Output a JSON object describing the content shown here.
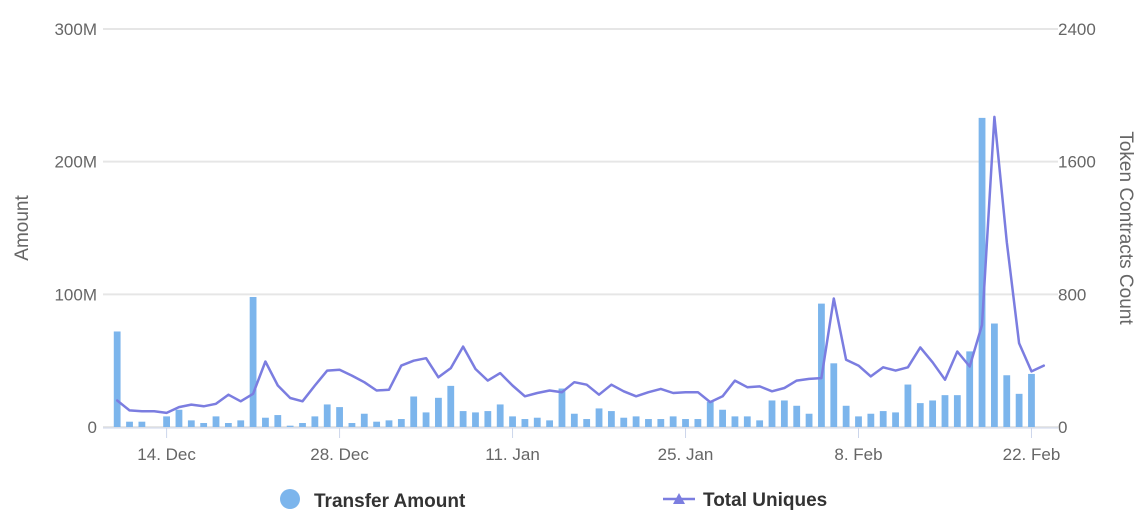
{
  "chart_data": {
    "type": "bar+line",
    "x_type": "datetime",
    "x_range": [
      "2023-12-10",
      "2024-02-23"
    ],
    "x_ticks": [
      "14. Dec",
      "28. Dec",
      "11. Jan",
      "25. Jan",
      "8. Feb",
      "22. Feb"
    ],
    "x_tick_dates": [
      "2023-12-14",
      "2023-12-28",
      "2024-01-11",
      "2024-01-25",
      "2024-02-08",
      "2024-02-22"
    ],
    "y_left": {
      "title": "Amount",
      "range": [
        0,
        300000000
      ],
      "ticks": [
        0,
        100000000,
        200000000,
        300000000
      ],
      "tick_labels": [
        "0",
        "100M",
        "200M",
        "300M"
      ]
    },
    "y_right": {
      "title": "Token Contracts Count",
      "range": [
        0,
        2400
      ],
      "ticks": [
        0,
        800,
        1600,
        2400
      ],
      "tick_labels": [
        "0",
        "800",
        "1600",
        "2400"
      ]
    },
    "grid": true,
    "legend_position": "bottom",
    "colors": {
      "bars": "#7cb5ec",
      "line": "#7b7de0",
      "grid": "#e6e6e6",
      "axis": "#ccd6eb"
    },
    "series": [
      {
        "name": "Transfer Amount",
        "kind": "bar",
        "axis": "left",
        "x": [
          "2023-12-10",
          "2023-12-11",
          "2023-12-12",
          "2023-12-13",
          "2023-12-14",
          "2023-12-15",
          "2023-12-16",
          "2023-12-17",
          "2023-12-18",
          "2023-12-19",
          "2023-12-20",
          "2023-12-21",
          "2023-12-22",
          "2023-12-23",
          "2023-12-24",
          "2023-12-25",
          "2023-12-26",
          "2023-12-27",
          "2023-12-28",
          "2023-12-29",
          "2023-12-30",
          "2023-12-31",
          "2024-01-01",
          "2024-01-02",
          "2024-01-03",
          "2024-01-04",
          "2024-01-05",
          "2024-01-06",
          "2024-01-07",
          "2024-01-08",
          "2024-01-09",
          "2024-01-10",
          "2024-01-11",
          "2024-01-12",
          "2024-01-13",
          "2024-01-14",
          "2024-01-15",
          "2024-01-16",
          "2024-01-17",
          "2024-01-18",
          "2024-01-19",
          "2024-01-20",
          "2024-01-21",
          "2024-01-22",
          "2024-01-23",
          "2024-01-24",
          "2024-01-25",
          "2024-01-26",
          "2024-01-27",
          "2024-01-28",
          "2024-01-29",
          "2024-01-30",
          "2024-01-31",
          "2024-02-01",
          "2024-02-02",
          "2024-02-03",
          "2024-02-04",
          "2024-02-05",
          "2024-02-06",
          "2024-02-07",
          "2024-02-08",
          "2024-02-09",
          "2024-02-10",
          "2024-02-11",
          "2024-02-12",
          "2024-02-13",
          "2024-02-14",
          "2024-02-15",
          "2024-02-16",
          "2024-02-17",
          "2024-02-18",
          "2024-02-19",
          "2024-02-20",
          "2024-02-21",
          "2024-02-22",
          "2024-02-23"
        ],
        "values": [
          72000000,
          4000000,
          4000000,
          0,
          8000000,
          13000000,
          5000000,
          3000000,
          8000000,
          3000000,
          5000000,
          98000000,
          7000000,
          9000000,
          1000000,
          3000000,
          8000000,
          17000000,
          15000000,
          3000000,
          10000000,
          4000000,
          5000000,
          6000000,
          23000000,
          11000000,
          22000000,
          31000000,
          12000000,
          11000000,
          12000000,
          17000000,
          8000000,
          6000000,
          7000000,
          5000000,
          29000000,
          10000000,
          6000000,
          14000000,
          12000000,
          7000000,
          8000000,
          6000000,
          6000000,
          8000000,
          6000000,
          6000000,
          19000000,
          13000000,
          8000000,
          8000000,
          5000000,
          20000000,
          20000000,
          16000000,
          10000000,
          93000000,
          48000000,
          16000000,
          8000000,
          10000000,
          12000000,
          11000000,
          32000000,
          18000000,
          20000000,
          24000000,
          24000000,
          57000000,
          233000000,
          78000000,
          39000000,
          25000000,
          40000000,
          0
        ]
      },
      {
        "name": "Total Uniques",
        "kind": "line",
        "axis": "right",
        "x": [
          "2023-12-10",
          "2023-12-11",
          "2023-12-12",
          "2023-12-13",
          "2023-12-14",
          "2023-12-15",
          "2023-12-16",
          "2023-12-17",
          "2023-12-18",
          "2023-12-19",
          "2023-12-20",
          "2023-12-21",
          "2023-12-22",
          "2023-12-23",
          "2023-12-24",
          "2023-12-25",
          "2023-12-26",
          "2023-12-27",
          "2023-12-28",
          "2023-12-29",
          "2023-12-30",
          "2023-12-31",
          "2024-01-01",
          "2024-01-02",
          "2024-01-03",
          "2024-01-04",
          "2024-01-05",
          "2024-01-06",
          "2024-01-07",
          "2024-01-08",
          "2024-01-09",
          "2024-01-10",
          "2024-01-11",
          "2024-01-12",
          "2024-01-13",
          "2024-01-14",
          "2024-01-15",
          "2024-01-16",
          "2024-01-17",
          "2024-01-18",
          "2024-01-19",
          "2024-01-20",
          "2024-01-21",
          "2024-01-22",
          "2024-01-23",
          "2024-01-24",
          "2024-01-25",
          "2024-01-26",
          "2024-01-27",
          "2024-01-28",
          "2024-01-29",
          "2024-01-30",
          "2024-01-31",
          "2024-02-01",
          "2024-02-02",
          "2024-02-03",
          "2024-02-04",
          "2024-02-05",
          "2024-02-06",
          "2024-02-07",
          "2024-02-08",
          "2024-02-09",
          "2024-02-10",
          "2024-02-11",
          "2024-02-12",
          "2024-02-13",
          "2024-02-14",
          "2024-02-15",
          "2024-02-16",
          "2024-02-17",
          "2024-02-18",
          "2024-02-19",
          "2024-02-20",
          "2024-02-21",
          "2024-02-22",
          "2024-02-23"
        ],
        "values": [
          160,
          100,
          95,
          95,
          85,
          120,
          135,
          125,
          140,
          195,
          155,
          200,
          395,
          250,
          175,
          155,
          250,
          340,
          345,
          310,
          270,
          220,
          225,
          370,
          400,
          415,
          300,
          355,
          485,
          350,
          280,
          325,
          250,
          185,
          205,
          220,
          210,
          270,
          255,
          195,
          255,
          215,
          185,
          210,
          230,
          205,
          210,
          210,
          150,
          185,
          280,
          240,
          245,
          215,
          235,
          280,
          290,
          295,
          775,
          405,
          370,
          305,
          360,
          340,
          360,
          480,
          390,
          285,
          455,
          365,
          615,
          1870,
          1115,
          505,
          335,
          370
        ]
      }
    ]
  }
}
